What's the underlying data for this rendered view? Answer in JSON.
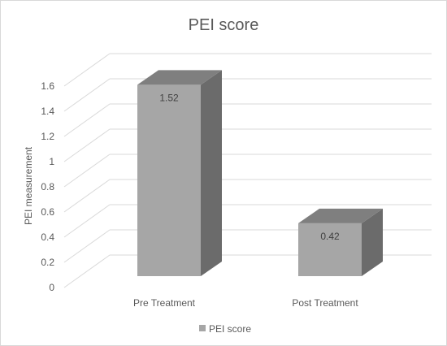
{
  "chart_data": {
    "type": "bar",
    "title": "PEI score",
    "xlabel": "",
    "ylabel": "PEI measurement",
    "categories": [
      "Pre Treatment",
      "Post Treatment"
    ],
    "series": [
      {
        "name": "PEI score",
        "values": [
          1.52,
          0.42
        ]
      }
    ],
    "data_labels": [
      "1.52",
      "0.42"
    ],
    "ylim": [
      0,
      1.6
    ],
    "yticks": [
      "0",
      "0.2",
      "0.4",
      "0.6",
      "0.8",
      "1",
      "1.2",
      "1.4",
      "1.6"
    ],
    "grid": true,
    "three_d": true,
    "legend": "bottom",
    "colors": {
      "bar_front": "#a6a6a6",
      "bar_top": "#7f7f7f",
      "bar_side": "#6b6b6b",
      "grid": "#d9d9d9"
    }
  }
}
